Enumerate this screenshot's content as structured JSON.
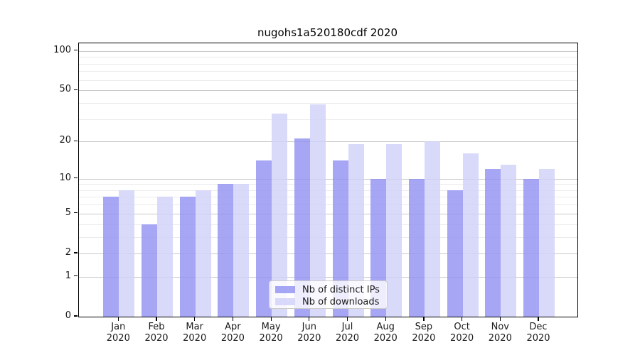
{
  "chart_data": {
    "type": "bar",
    "title": "nugohs1a520180cdf 2020",
    "categories": [
      "Jan",
      "Feb",
      "Mar",
      "Apr",
      "May",
      "Jun",
      "Jul",
      "Aug",
      "Sep",
      "Oct",
      "Nov",
      "Dec"
    ],
    "x_tick_year": "2020",
    "series": [
      {
        "name": "Nb of distinct IPs",
        "color": "rgba(146,146,243,0.82)",
        "values": [
          7,
          4,
          7,
          9,
          14,
          21,
          14,
          10,
          10,
          8,
          12,
          10
        ]
      },
      {
        "name": "Nb of downloads",
        "color": "rgba(209,209,249,0.82)",
        "values": [
          8,
          7,
          8,
          9,
          33,
          39,
          19,
          19,
          20,
          16,
          13,
          12
        ]
      }
    ],
    "xlabel": "",
    "ylabel": "",
    "y_scale": "log1p",
    "ylim": [
      0,
      115
    ],
    "y_ticks": [
      0,
      1,
      2,
      5,
      10,
      20,
      50,
      100
    ],
    "y_minor_ticks": [
      3,
      4,
      6,
      7,
      8,
      9,
      30,
      40,
      60,
      70,
      80,
      90
    ],
    "grid": true,
    "legend_position": "lower center"
  }
}
